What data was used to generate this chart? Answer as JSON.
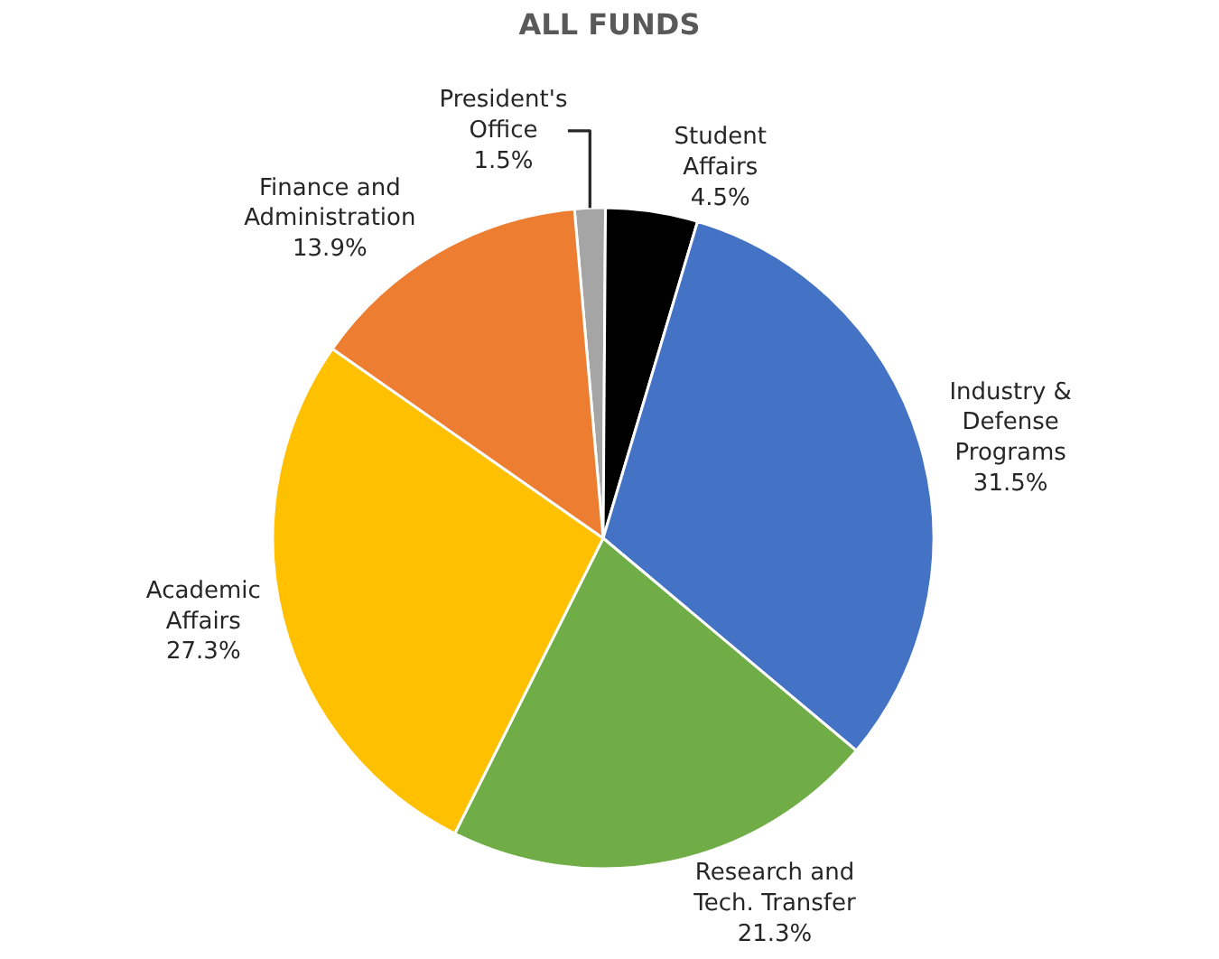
{
  "chart_data": {
    "type": "pie",
    "title": "ALL FUNDS",
    "categories": [
      "President's Office",
      "Student Affairs",
      "Industry & Defense Programs",
      "Research and Tech. Transfer",
      "Academic Affairs",
      "Finance and Administration"
    ],
    "values": [
      1.5,
      4.5,
      31.5,
      21.3,
      27.3,
      13.9
    ],
    "value_labels": [
      "1.5%",
      "4.5%",
      "31.5%",
      "21.3%",
      "27.3%",
      "13.9%"
    ],
    "colors": [
      "#a5a5a5",
      "#000000",
      "#4472c4",
      "#70ad47",
      "#ffc000",
      "#ed7d31"
    ],
    "legend": false
  }
}
